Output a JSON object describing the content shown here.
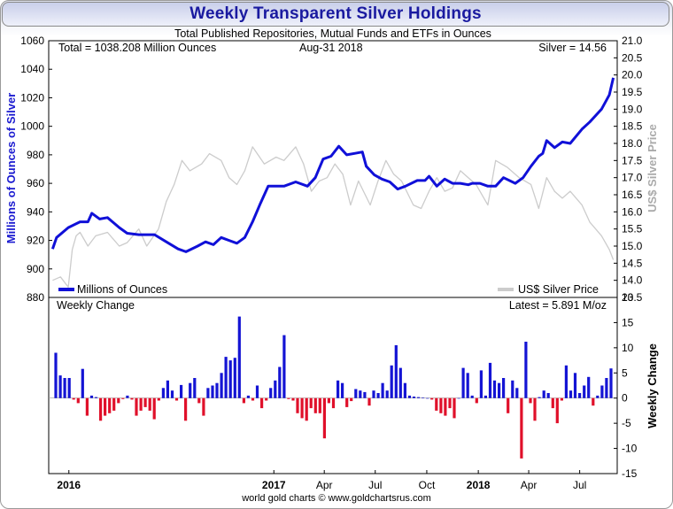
{
  "title": "Weekly Transparent Silver Holdings",
  "footer": "world gold charts © www.goldchartsrus.com",
  "colors": {
    "holdings_line": "#1010d8",
    "silver_line": "#cccccc",
    "bar_positive": "#1414d4",
    "bar_negative": "#e0102a",
    "left_axis_label": "#1a1ad0",
    "right_axis_label": "#aaaaaa",
    "zero_label": "#e000e0"
  },
  "chart_data": [
    {
      "type": "line",
      "subtitle": "Total Published Repositories, Mutual Funds and ETFs in Ounces",
      "info_total": "Total = 1038.208 Million Ounces",
      "info_date": "Aug-31  2018",
      "info_silver": "Silver = 14.56",
      "ylabel_left": "Millions of Ounces of Silver",
      "ylabel_right": "US$ Silver Price",
      "ylim_left": [
        880,
        1060
      ],
      "yticks_left": [
        880,
        900,
        920,
        940,
        960,
        980,
        1000,
        1020,
        1040,
        1060
      ],
      "ylim_right": [
        13.5,
        21.0
      ],
      "yticks_right": [
        "13.5",
        "14.0",
        "14.5",
        "15.0",
        "15.5",
        "16.0",
        "16.5",
        "17.0",
        "17.5",
        "18.0",
        "18.5",
        "19.0",
        "19.5",
        "20.0",
        "20.5",
        "21.0"
      ],
      "x_start": "2015-11-26",
      "x_end": "2018-09-06",
      "legend_position": "bottom",
      "series": [
        {
          "name": "Millions of Ounces",
          "axis": "left",
          "x": [
            "2015-12-03",
            "2015-12-10",
            "2015-12-31",
            "2016-01-21",
            "2016-02-04",
            "2016-02-11",
            "2016-02-25",
            "2016-03-10",
            "2016-03-31",
            "2016-04-14",
            "2016-05-05",
            "2016-06-02",
            "2016-06-23",
            "2016-07-14",
            "2016-07-28",
            "2016-08-18",
            "2016-09-01",
            "2016-09-15",
            "2016-09-29",
            "2016-10-13",
            "2016-10-27",
            "2016-11-10",
            "2016-11-24",
            "2016-12-08",
            "2016-12-22",
            "2017-01-19",
            "2017-02-09",
            "2017-03-02",
            "2017-03-16",
            "2017-03-30",
            "2017-04-13",
            "2017-04-27",
            "2017-05-11",
            "2017-05-25",
            "2017-06-08",
            "2017-06-15",
            "2017-06-29",
            "2017-07-13",
            "2017-07-27",
            "2017-08-10",
            "2017-08-24",
            "2017-09-14",
            "2017-09-28",
            "2017-10-05",
            "2017-10-19",
            "2017-11-02",
            "2017-11-16",
            "2017-11-30",
            "2017-12-14",
            "2017-12-21",
            "2018-01-04",
            "2018-01-18",
            "2018-02-01",
            "2018-02-15",
            "2018-03-08",
            "2018-03-22",
            "2018-04-05",
            "2018-04-19",
            "2018-04-26",
            "2018-05-03",
            "2018-05-17",
            "2018-05-31",
            "2018-06-14",
            "2018-07-05",
            "2018-07-19",
            "2018-08-09",
            "2018-08-23",
            "2018-08-30"
          ],
          "y": [
            914,
            922,
            929,
            933,
            933,
            939,
            935,
            936,
            929,
            925,
            924,
            924,
            919,
            914,
            912,
            916,
            919,
            917,
            922,
            920,
            918,
            922,
            933,
            946,
            958,
            958,
            961,
            958,
            964,
            977,
            979,
            986,
            980,
            981,
            982,
            972,
            966,
            963,
            961,
            956,
            958,
            962,
            962,
            965,
            958,
            963,
            960,
            960,
            959,
            960,
            960,
            958,
            958,
            964,
            960,
            964,
            972,
            979,
            981,
            990,
            985,
            989,
            988,
            998,
            1003,
            1012,
            1022,
            1034
          ]
        },
        {
          "name": "US$ Silver Price",
          "axis": "right",
          "x": [
            "2015-12-03",
            "2015-12-17",
            "2015-12-31",
            "2016-01-07",
            "2016-01-14",
            "2016-01-21",
            "2016-02-04",
            "2016-02-18",
            "2016-03-10",
            "2016-03-31",
            "2016-04-14",
            "2016-05-05",
            "2016-05-19",
            "2016-06-09",
            "2016-06-23",
            "2016-07-07",
            "2016-07-21",
            "2016-08-04",
            "2016-08-25",
            "2016-09-08",
            "2016-09-29",
            "2016-10-13",
            "2016-10-27",
            "2016-11-10",
            "2016-11-24",
            "2016-12-15",
            "2017-01-05",
            "2017-01-19",
            "2017-02-09",
            "2017-02-23",
            "2017-03-09",
            "2017-03-23",
            "2017-04-06",
            "2017-04-20",
            "2017-05-04",
            "2017-05-18",
            "2017-06-01",
            "2017-06-22",
            "2017-07-06",
            "2017-07-20",
            "2017-08-03",
            "2017-08-17",
            "2017-09-07",
            "2017-09-21",
            "2017-10-05",
            "2017-10-19",
            "2017-11-02",
            "2017-11-16",
            "2017-11-30",
            "2017-12-14",
            "2017-12-28",
            "2018-01-18",
            "2018-02-01",
            "2018-02-22",
            "2018-03-15",
            "2018-04-05",
            "2018-04-19",
            "2018-05-03",
            "2018-05-17",
            "2018-05-31",
            "2018-06-14",
            "2018-07-05",
            "2018-07-19",
            "2018-08-09",
            "2018-08-23",
            "2018-08-30"
          ],
          "y": [
            14.0,
            14.1,
            13.8,
            14.9,
            15.3,
            15.4,
            15.0,
            15.3,
            15.4,
            15.0,
            15.1,
            15.5,
            15.0,
            15.5,
            16.3,
            16.8,
            17.5,
            17.2,
            17.4,
            17.7,
            17.5,
            17.0,
            16.8,
            17.2,
            17.9,
            17.4,
            17.6,
            17.5,
            17.9,
            17.4,
            16.6,
            16.9,
            17.0,
            17.4,
            17.1,
            16.2,
            16.9,
            16.2,
            16.9,
            17.5,
            17.1,
            16.9,
            16.2,
            16.1,
            16.6,
            17.0,
            16.6,
            16.7,
            17.2,
            17.0,
            16.8,
            16.2,
            17.5,
            17.3,
            17.0,
            16.8,
            16.1,
            17.0,
            16.6,
            16.4,
            16.6,
            16.2,
            15.7,
            15.3,
            14.9,
            14.6
          ]
        }
      ]
    },
    {
      "type": "bar",
      "title": "Weekly Change",
      "latest": "Latest = 5.891 M/oz",
      "ylabel_right": "Weekly Change",
      "ylim": [
        -15,
        20
      ],
      "yticks": [
        -15,
        -10,
        -5,
        0,
        5,
        10,
        15,
        20
      ],
      "x_start": "2015-11-26",
      "x_end": "2018-09-06",
      "xtick_labels": [
        {
          "label": "2016",
          "date": "2016-01-01",
          "bold": true
        },
        {
          "label": "2017",
          "date": "2017-01-01",
          "bold": true
        },
        {
          "label": "Apr",
          "date": "2017-04-01",
          "bold": false
        },
        {
          "label": "Jul",
          "date": "2017-07-01",
          "bold": false
        },
        {
          "label": "Oct",
          "date": "2017-10-01",
          "bold": false
        },
        {
          "label": "2018",
          "date": "2018-01-01",
          "bold": true
        },
        {
          "label": "Apr",
          "date": "2018-04-01",
          "bold": false
        },
        {
          "label": "Jul",
          "date": "2018-07-01",
          "bold": false
        }
      ],
      "values": [
        9.0,
        4.5,
        4.0,
        4.0,
        -0.3,
        -1.0,
        5.8,
        -3.5,
        0.5,
        0.2,
        -4.5,
        -3.5,
        -3.0,
        -2.5,
        -1.0,
        -0.2,
        0.5,
        -0.3,
        -3.5,
        -2.5,
        -1.8,
        -2.5,
        -4.2,
        -0.5,
        2.0,
        3.5,
        1.5,
        -0.5,
        2.6,
        -4.5,
        3.0,
        4.0,
        -1.0,
        -3.5,
        2.0,
        2.5,
        3.0,
        5.0,
        8.2,
        7.5,
        8.0,
        16.2,
        -1.0,
        0.5,
        -0.5,
        2.5,
        -2.0,
        -0.5,
        2.0,
        3.5,
        6.2,
        12.5,
        -0.2,
        -0.5,
        -3.0,
        -4.0,
        -4.5,
        -2.0,
        -3.0,
        -3.0,
        -8.0,
        -1.0,
        -2.0,
        3.5,
        3.0,
        -1.8,
        -0.6,
        1.8,
        1.5,
        1.2,
        -1.5,
        1.5,
        1.0,
        3.0,
        1.5,
        6.5,
        10.5,
        6.0,
        3.0,
        0.5,
        0.3,
        0.2,
        0.1,
        0.0,
        -0.3,
        -2.5,
        -3.0,
        -3.5,
        -2.0,
        -4.0,
        0.0,
        6.0,
        5.0,
        0.5,
        -1.0,
        5.5,
        0.5,
        7.0,
        3.5,
        3.0,
        4.0,
        -3.0,
        3.5,
        2.0,
        -12.0,
        11.2,
        -1.0,
        -4.5,
        0.2,
        1.5,
        1.0,
        -2.0,
        -5.0,
        -0.5,
        6.5,
        1.5,
        5.0,
        1.0,
        2.5,
        4.2,
        -1.5,
        0.5,
        2.5,
        4.0,
        5.891
      ]
    }
  ]
}
